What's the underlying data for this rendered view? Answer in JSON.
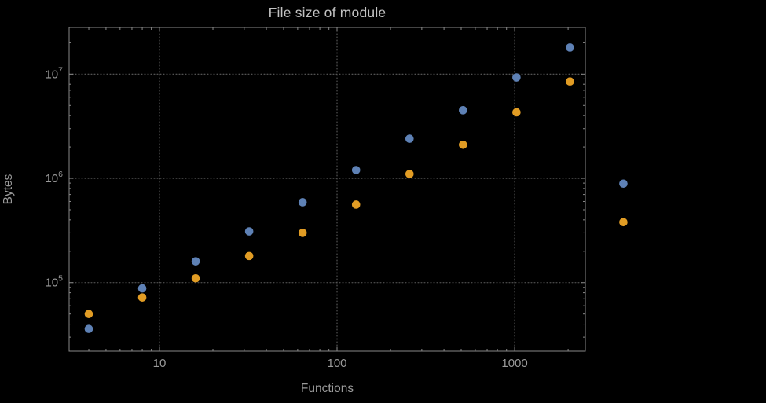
{
  "page": {
    "background": "#000000"
  },
  "colors": {
    "frame": "#898989",
    "grid": "#5e5e5e",
    "tick_label": "#9a9a9a",
    "title": "#c2c2c2",
    "axis_label": "#9a9a9a"
  },
  "chart_data": {
    "type": "scatter",
    "title": "File size of module",
    "xlabel": "Functions",
    "ylabel": "Bytes",
    "x_scale": "log",
    "y_scale": "log",
    "grid": true,
    "legend_position": "none",
    "x_range": [
      3.1,
      2500
    ],
    "y_range": [
      22000,
      28000000
    ],
    "x_ticks": [
      10,
      100,
      1000
    ],
    "x_tick_labels": [
      "10",
      "100",
      "1000"
    ],
    "y_ticks": [
      100000,
      1000000,
      10000000
    ],
    "y_tick_labels": [
      "10^5",
      "10^6",
      "10^7"
    ],
    "y_tick_exponents": [
      "5",
      "6",
      "7"
    ],
    "series": [
      {
        "name": "series-blue",
        "color": "#5E81B5",
        "x": [
          4,
          8,
          16,
          32,
          64,
          128,
          256,
          512,
          1024,
          2048,
          4096
        ],
        "y": [
          36000,
          88000,
          160000,
          310000,
          590000,
          1200000,
          2400000,
          4500000,
          9300000,
          18000000,
          890000
        ]
      },
      {
        "name": "series-orange",
        "color": "#E19C24",
        "x": [
          4,
          8,
          16,
          32,
          64,
          128,
          256,
          512,
          1024,
          2048,
          4096
        ],
        "y": [
          50000,
          72000,
          110000,
          180000,
          300000,
          560000,
          1100000,
          2100000,
          4300000,
          8500000,
          380000
        ]
      }
    ]
  }
}
